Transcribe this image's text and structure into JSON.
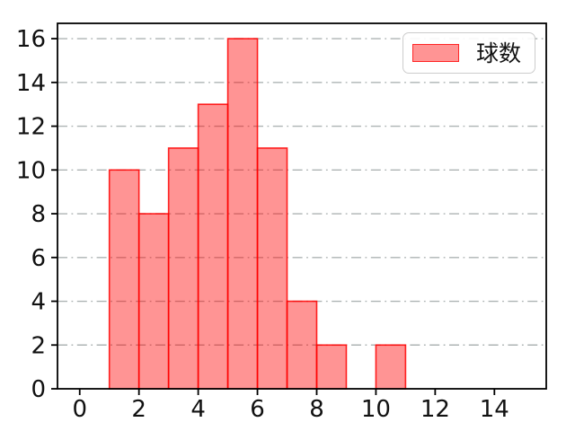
{
  "legend": {
    "label": "球数",
    "position": "upper right"
  },
  "colors": {
    "bar_fill": "rgba(255, 0, 0, 0.42)",
    "bar_edge": "rgba(255, 0, 0, 0.85)",
    "grid": "#aeb4b4",
    "spine": "#000000",
    "tick_label": "#111111"
  },
  "chart_data": {
    "type": "bar",
    "subtype": "histogram",
    "series_name": "球数",
    "bin_start": 1,
    "bin_width": 1,
    "counts": [
      10,
      8,
      11,
      13,
      16,
      11,
      4,
      2,
      0,
      2
    ],
    "bin_edges": [
      1,
      2,
      3,
      4,
      5,
      6,
      7,
      8,
      9,
      10,
      11
    ],
    "x_ticks": [
      0,
      2,
      4,
      6,
      8,
      10,
      12,
      14
    ],
    "y_ticks": [
      0,
      2,
      4,
      6,
      8,
      10,
      12,
      14,
      16
    ],
    "xlim": [
      -0.75,
      15.75
    ],
    "ylim": [
      0,
      16.7
    ],
    "grid": "y-only, dash-dot",
    "title": "",
    "xlabel": "",
    "ylabel": ""
  }
}
